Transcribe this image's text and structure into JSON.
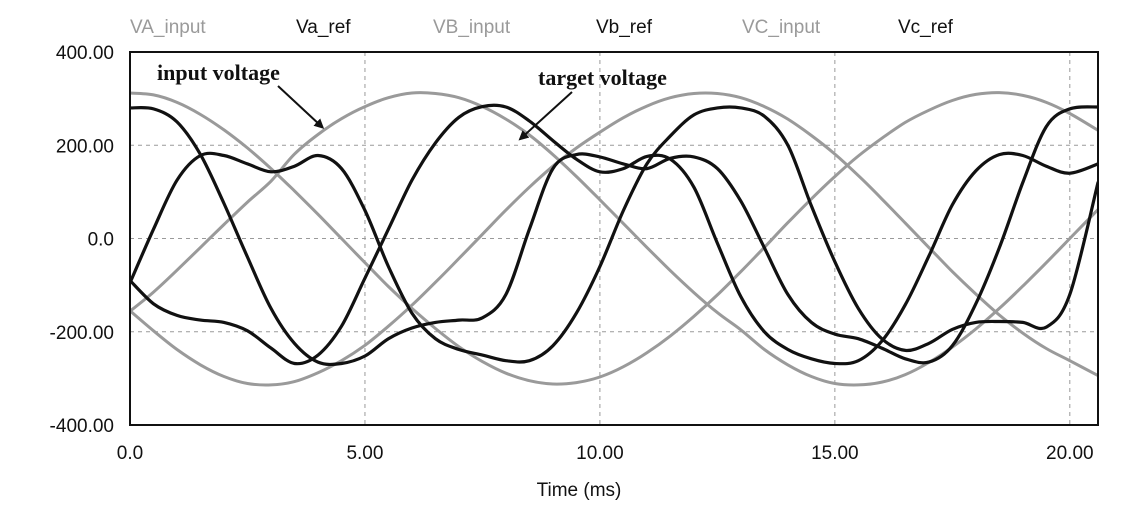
{
  "chart_data": {
    "type": "line",
    "xlabel": "Time (ms)",
    "ylabel": "",
    "xlim": [
      0,
      20.6
    ],
    "ylim": [
      -400,
      400
    ],
    "x_ticks": [
      0,
      5,
      10,
      15,
      20
    ],
    "x_tick_labels": [
      "0.0",
      "5.00",
      "10.00",
      "15.00",
      "20.00"
    ],
    "y_ticks": [
      400,
      200,
      0,
      -200,
      -400
    ],
    "y_tick_labels": [
      "400.00",
      "200.00",
      "0.0",
      "-200.00",
      "-400.00"
    ],
    "grid": true,
    "legend_position": "top",
    "colors": {
      "input": "#9a9a9a",
      "reference": "#111111",
      "grid": "#9a9a9a"
    },
    "series": [
      {
        "name": "VA_input",
        "kind": "input",
        "x": [
          0,
          0.5,
          1,
          1.5,
          2,
          2.5,
          3,
          3.5,
          4,
          4.5,
          5,
          5.5,
          6,
          6.5,
          7,
          7.5,
          8,
          8.5,
          9,
          9.5,
          10,
          10.5,
          11,
          11.5,
          12,
          12.5,
          13,
          13.5,
          14,
          14.5,
          15,
          15.5,
          16,
          16.5,
          17,
          17.5,
          18,
          18.5,
          19,
          19.5,
          20,
          20.6
        ],
        "y": [
          -156,
          -115,
          -68,
          -19,
          30,
          78,
          123,
          181,
          223,
          257,
          283,
          302,
          312,
          311,
          302,
          283,
          256,
          222,
          180,
          133,
          83,
          32,
          -19,
          -69,
          -116,
          -159,
          -196,
          -238,
          -271,
          -296,
          -311,
          -314,
          -308,
          -292,
          -266,
          -233,
          -194,
          -150,
          -102,
          -52,
          0,
          62
        ]
      },
      {
        "name": "Va_ref",
        "kind": "reference",
        "x": [
          0,
          0.5,
          1,
          1.5,
          2,
          2.5,
          3,
          3.5,
          4,
          4.5,
          5,
          5.5,
          6,
          6.5,
          7,
          7.5,
          8,
          8.5,
          9,
          9.5,
          10,
          10.5,
          11,
          11.5,
          12,
          12.5,
          13,
          13.5,
          14,
          14.5,
          15,
          15.5,
          16,
          16.5,
          17,
          17.5,
          18,
          18.5,
          19,
          19.5,
          20,
          20.6
        ],
        "y": [
          -90,
          -140,
          -165,
          -175,
          -180,
          -198,
          -235,
          -268,
          -250,
          -188,
          -85,
          20,
          125,
          205,
          260,
          283,
          282,
          252,
          210,
          170,
          143,
          150,
          176,
          170,
          110,
          -10,
          -125,
          -200,
          -238,
          -258,
          -268,
          -262,
          -220,
          -142,
          -38,
          72,
          145,
          180,
          178,
          155,
          140,
          160
        ]
      },
      {
        "name": "VB_input",
        "kind": "input",
        "x": [
          0,
          0.5,
          1,
          1.5,
          2,
          2.5,
          3,
          3.5,
          4,
          4.5,
          5,
          5.5,
          6,
          6.5,
          7,
          7.5,
          8,
          8.5,
          9,
          9.5,
          10,
          10.5,
          11,
          11.5,
          12,
          12.5,
          13,
          13.5,
          14,
          14.5,
          15,
          15.5,
          16,
          16.5,
          17,
          17.5,
          18,
          18.5,
          19,
          19.5,
          20,
          20.6
        ],
        "y": [
          -155,
          -198,
          -238,
          -271,
          -296,
          -311,
          -314,
          -307,
          -288,
          -262,
          -229,
          -188,
          -143,
          -94,
          -43,
          9,
          61,
          110,
          155,
          194,
          228,
          259,
          284,
          302,
          311,
          311,
          302,
          283,
          256,
          221,
          181,
          135,
          85,
          33,
          -19,
          -71,
          -119,
          -164,
          -203,
          -236,
          -262,
          -294
        ]
      },
      {
        "name": "Vb_ref",
        "kind": "reference",
        "x": [
          0,
          0.5,
          1,
          1.5,
          2,
          2.5,
          3,
          3.5,
          4,
          4.5,
          5,
          5.5,
          6,
          6.5,
          7,
          7.5,
          8,
          8.5,
          9,
          9.5,
          10,
          10.5,
          11,
          11.5,
          12,
          12.5,
          13,
          13.5,
          14,
          14.5,
          15,
          15.5,
          16,
          16.5,
          17,
          17.5,
          18,
          18.5,
          19,
          19.5,
          20,
          20.6
        ],
        "y": [
          280,
          278,
          250,
          180,
          75,
          -40,
          -150,
          -225,
          -265,
          -268,
          -252,
          -215,
          -192,
          -180,
          -175,
          -170,
          -120,
          20,
          150,
          180,
          175,
          160,
          150,
          172,
          175,
          150,
          80,
          -20,
          -120,
          -180,
          -205,
          -215,
          -235,
          -258,
          -265,
          -230,
          -140,
          -20,
          120,
          240,
          278,
          282
        ]
      },
      {
        "name": "VC_input",
        "kind": "input",
        "x": [
          0,
          0.5,
          1,
          1.5,
          2,
          2.5,
          3,
          3.5,
          4,
          4.5,
          5,
          5.5,
          6,
          6.5,
          7,
          7.5,
          8,
          8.5,
          9,
          9.5,
          10,
          10.5,
          11,
          11.5,
          12,
          12.5,
          13,
          13.5,
          14,
          14.5,
          15,
          15.5,
          16,
          16.5,
          17,
          17.5,
          18,
          18.5,
          19,
          19.5,
          20,
          20.6
        ],
        "y": [
          312,
          308,
          292,
          266,
          233,
          194,
          150,
          102,
          52,
          0,
          -52,
          -103,
          -150,
          -193,
          -232,
          -264,
          -289,
          -305,
          -312,
          -309,
          -297,
          -275,
          -245,
          -209,
          -167,
          -121,
          -71,
          -19,
          34,
          85,
          133,
          177,
          215,
          249,
          275,
          296,
          309,
          313,
          307,
          292,
          268,
          232
        ]
      },
      {
        "name": "Vc_ref",
        "kind": "reference",
        "x": [
          0,
          0.5,
          1,
          1.5,
          2,
          2.5,
          3,
          3.5,
          4,
          4.5,
          5,
          5.5,
          6,
          6.5,
          7,
          7.5,
          8,
          8.5,
          9,
          9.5,
          10,
          10.5,
          11,
          11.5,
          12,
          12.5,
          13,
          13.5,
          14,
          14.5,
          15,
          15.5,
          16,
          16.5,
          17,
          17.5,
          18,
          18.5,
          19,
          19.5,
          20,
          20.6
        ],
        "y": [
          -95,
          20,
          125,
          178,
          178,
          160,
          143,
          155,
          178,
          150,
          60,
          -60,
          -160,
          -215,
          -238,
          -250,
          -262,
          -262,
          -230,
          -160,
          -60,
          60,
          160,
          220,
          265,
          280,
          280,
          262,
          200,
          70,
          -50,
          -150,
          -215,
          -240,
          -225,
          -195,
          -180,
          -178,
          -180,
          -190,
          -120,
          120
        ]
      }
    ],
    "annotations": [
      {
        "text": "input voltage",
        "arrow_to": [
          4.1,
          238
        ]
      },
      {
        "text": "target voltage",
        "arrow_to": [
          8.3,
          213
        ]
      }
    ]
  }
}
